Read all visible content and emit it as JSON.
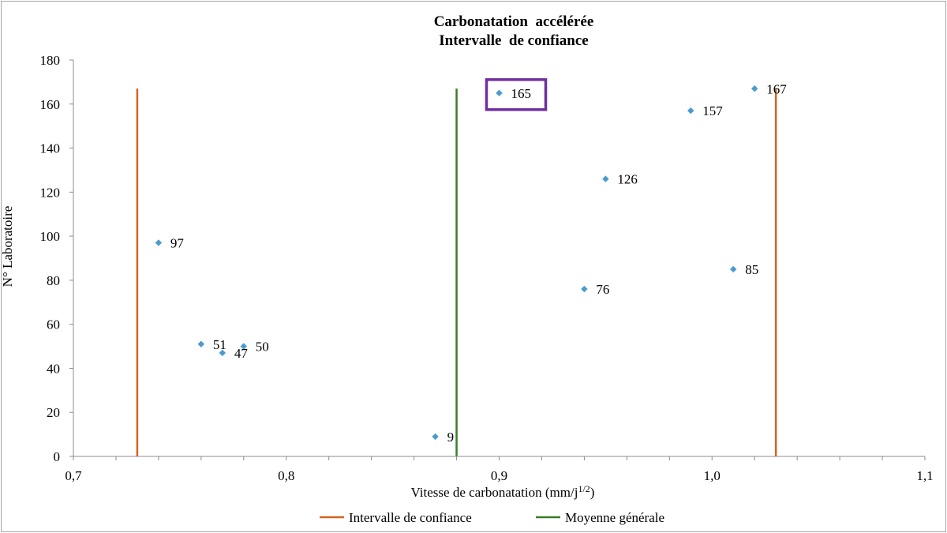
{
  "chart_data": {
    "type": "scatter",
    "title": [
      "Carbonatation  accélérée",
      "Intervalle  de confiance"
    ],
    "xlabel": "Vitesse de carbonatation (mm/j",
    "xlabel_sup": "1/2",
    "xlabel_end": ")",
    "ylabel": "N° Laboratoire",
    "xlim": [
      0.7,
      1.1
    ],
    "ylim": [
      0,
      180
    ],
    "x_ticks": [
      {
        "value": 0.7,
        "label": "0,7"
      },
      {
        "value": 0.8,
        "label": "0,8"
      },
      {
        "value": 0.9,
        "label": "0,9"
      },
      {
        "value": 1.0,
        "label": "1,0"
      },
      {
        "value": 1.1,
        "label": "1,1"
      }
    ],
    "x_minor_step": 0.02,
    "y_ticks": [
      {
        "value": 0,
        "label": "0"
      },
      {
        "value": 20,
        "label": "20"
      },
      {
        "value": 40,
        "label": "40"
      },
      {
        "value": 60,
        "label": "60"
      },
      {
        "value": 80,
        "label": "80"
      },
      {
        "value": 100,
        "label": "100"
      },
      {
        "value": 120,
        "label": "120"
      },
      {
        "value": 140,
        "label": "140"
      },
      {
        "value": 160,
        "label": "160"
      },
      {
        "value": 180,
        "label": "180"
      }
    ],
    "grid": false,
    "points": [
      {
        "x": 0.74,
        "y": 97,
        "label": "97"
      },
      {
        "x": 0.76,
        "y": 51,
        "label": "51"
      },
      {
        "x": 0.77,
        "y": 47,
        "label": "47"
      },
      {
        "x": 0.78,
        "y": 50,
        "label": "50"
      },
      {
        "x": 0.87,
        "y": 9,
        "label": "9"
      },
      {
        "x": 0.9,
        "y": 165,
        "label": "165",
        "highlighted": true
      },
      {
        "x": 0.94,
        "y": 76,
        "label": "76"
      },
      {
        "x": 0.95,
        "y": 126,
        "label": "126"
      },
      {
        "x": 0.99,
        "y": 157,
        "label": "157"
      },
      {
        "x": 1.01,
        "y": 85,
        "label": "85"
      },
      {
        "x": 1.02,
        "y": 167,
        "label": "167"
      }
    ],
    "point_color": "#4a9bd0",
    "vertical_lines": [
      {
        "name": "Intervalle de confiance",
        "x": 0.73,
        "y_range": [
          0,
          167
        ],
        "color": "#d2651f"
      },
      {
        "name": "Intervalle de confiance",
        "x": 1.03,
        "y_range": [
          0,
          167
        ],
        "color": "#d2651f"
      },
      {
        "name": "Moyenne générale",
        "x": 0.88,
        "y_range": [
          0,
          167
        ],
        "color": "#3a7d2c"
      }
    ],
    "highlight_color": "#7030a0",
    "legend": {
      "placement": "bottom",
      "entries": [
        {
          "name": "Intervalle de confiance",
          "color": "#d2651f"
        },
        {
          "name": "Moyenne générale",
          "color": "#3a7d2c"
        }
      ]
    }
  }
}
